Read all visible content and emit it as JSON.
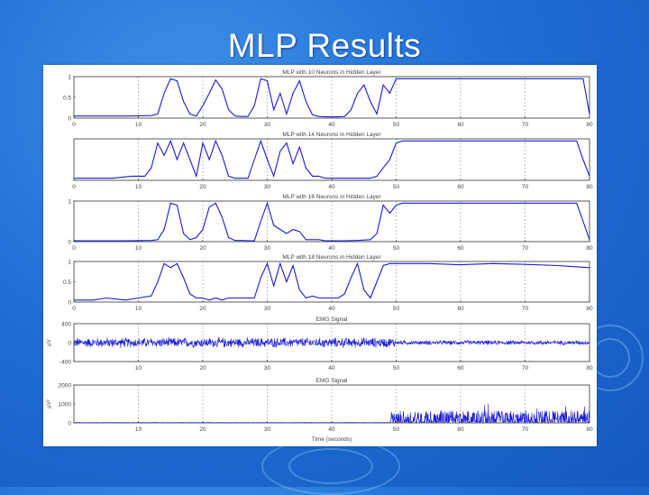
{
  "slide": {
    "title": "MLP Results"
  },
  "colors": {
    "line": "#1a1ad6",
    "axis": "#333333",
    "grid": "#555555"
  },
  "chart_data": [
    {
      "type": "line",
      "title": "MLP with 10 Neurons in Hidden Layer",
      "xlim": [
        0,
        80
      ],
      "ylim": [
        0,
        1
      ],
      "xticks": [
        "0",
        "10",
        "20",
        "30",
        "40",
        "50",
        "60",
        "70",
        "80"
      ],
      "yticks": [
        "0",
        "0.5",
        "1"
      ],
      "x": [
        0,
        4,
        8,
        12,
        13,
        14,
        15,
        16,
        17,
        18,
        19,
        20,
        21,
        22,
        23,
        24,
        25,
        26,
        27,
        28,
        29,
        30,
        31,
        32,
        33,
        34,
        35,
        36,
        37,
        38,
        39,
        40,
        41,
        42,
        43,
        44,
        45,
        46,
        47,
        48,
        49,
        50,
        51,
        52,
        53,
        54,
        55,
        60,
        65,
        70,
        74,
        75,
        76,
        77,
        78,
        79,
        80
      ],
      "y": [
        0.05,
        0.05,
        0.05,
        0.06,
        0.1,
        0.6,
        0.95,
        0.9,
        0.4,
        0.1,
        0.05,
        0.3,
        0.6,
        0.92,
        0.7,
        0.2,
        0.05,
        0.04,
        0.04,
        0.3,
        0.95,
        0.9,
        0.2,
        0.6,
        0.1,
        0.6,
        0.9,
        0.4,
        0.08,
        0.04,
        0.03,
        0.03,
        0.03,
        0.04,
        0.2,
        0.6,
        0.8,
        0.4,
        0.1,
        0.8,
        0.6,
        0.95,
        0.95,
        0.95,
        0.95,
        0.95,
        0.95,
        0.95,
        0.95,
        0.95,
        0.95,
        0.95,
        0.95,
        0.95,
        0.95,
        0.95,
        0.1
      ]
    },
    {
      "type": "line",
      "title": "MLP with 14 Neurons in Hidden Layer",
      "xlim": [
        0,
        80
      ],
      "ylim": [
        0,
        1
      ],
      "xticks": [
        "0",
        "10",
        "20",
        "30",
        "40",
        "50",
        "60",
        "70",
        "80"
      ],
      "yticks": [],
      "x": [
        0,
        3,
        6,
        9,
        11,
        12,
        13,
        14,
        15,
        16,
        17,
        18,
        19,
        20,
        21,
        22,
        23,
        24,
        25,
        26,
        27,
        28,
        29,
        30,
        31,
        32,
        33,
        34,
        35,
        36,
        37,
        38,
        39,
        40,
        42,
        44,
        46,
        47,
        48,
        49,
        50,
        51,
        52,
        53,
        55,
        60,
        70,
        78,
        79,
        80
      ],
      "y": [
        0.05,
        0.05,
        0.05,
        0.1,
        0.1,
        0.3,
        0.9,
        0.6,
        0.95,
        0.5,
        0.9,
        0.5,
        0.1,
        0.9,
        0.5,
        0.95,
        0.6,
        0.1,
        0.05,
        0.05,
        0.05,
        0.5,
        0.95,
        0.5,
        0.1,
        0.7,
        0.9,
        0.4,
        0.8,
        0.3,
        0.1,
        0.1,
        0.05,
        0.05,
        0.05,
        0.05,
        0.05,
        0.1,
        0.3,
        0.5,
        0.9,
        0.95,
        0.95,
        0.95,
        0.95,
        0.95,
        0.95,
        0.95,
        0.5,
        0.1
      ]
    },
    {
      "type": "line",
      "title": "MLP with 16 Neurons in Hidden Layer",
      "xlim": [
        0,
        80
      ],
      "ylim": [
        0,
        1
      ],
      "xticks": [
        "0",
        "10",
        "20",
        "30",
        "40",
        "50",
        "60",
        "70",
        "80"
      ],
      "yticks": [
        "0",
        "1"
      ],
      "x": [
        0,
        4,
        8,
        12,
        13,
        14,
        15,
        16,
        17,
        18,
        19,
        20,
        21,
        22,
        23,
        24,
        25,
        26,
        27,
        28,
        29,
        30,
        31,
        32,
        33,
        34,
        35,
        36,
        37,
        38,
        39,
        40,
        42,
        44,
        46,
        47,
        48,
        49,
        50,
        51,
        52,
        55,
        60,
        70,
        78,
        79,
        80
      ],
      "y": [
        0.02,
        0.02,
        0.02,
        0.03,
        0.05,
        0.3,
        0.95,
        0.9,
        0.2,
        0.05,
        0.1,
        0.3,
        0.85,
        0.95,
        0.6,
        0.1,
        0.03,
        0.03,
        0.02,
        0.02,
        0.5,
        0.95,
        0.4,
        0.3,
        0.2,
        0.3,
        0.25,
        0.05,
        0.05,
        0.05,
        0.02,
        0.02,
        0.02,
        0.03,
        0.05,
        0.2,
        0.9,
        0.7,
        0.9,
        0.95,
        0.95,
        0.95,
        0.95,
        0.95,
        0.95,
        0.5,
        0.05
      ]
    },
    {
      "type": "line",
      "title": "MLP with 18 Neurons in Hidden Layer",
      "xlim": [
        0,
        80
      ],
      "ylim": [
        0,
        1
      ],
      "xticks": [
        "0",
        "10",
        "20",
        "30",
        "40",
        "50",
        "60",
        "70",
        "80"
      ],
      "yticks": [
        "0",
        "0.5",
        "1"
      ],
      "x": [
        0,
        3,
        5,
        8,
        10,
        12,
        13,
        14,
        15,
        16,
        17,
        18,
        19,
        20,
        21,
        22,
        23,
        24,
        26,
        28,
        29,
        30,
        31,
        32,
        33,
        34,
        35,
        36,
        37,
        38,
        39,
        40,
        41,
        42,
        43,
        44,
        45,
        46,
        47,
        48,
        49,
        50,
        51,
        55,
        60,
        65,
        70,
        75,
        80
      ],
      "y": [
        0.05,
        0.05,
        0.1,
        0.05,
        0.1,
        0.15,
        0.5,
        0.95,
        0.85,
        0.95,
        0.6,
        0.2,
        0.1,
        0.1,
        0.05,
        0.1,
        0.05,
        0.1,
        0.1,
        0.1,
        0.6,
        0.95,
        0.4,
        0.95,
        0.5,
        0.9,
        0.3,
        0.1,
        0.15,
        0.1,
        0.1,
        0.1,
        0.1,
        0.2,
        0.6,
        0.95,
        0.3,
        0.1,
        0.5,
        0.9,
        0.95,
        0.95,
        0.95,
        0.95,
        0.92,
        0.95,
        0.93,
        0.9,
        0.85
      ]
    },
    {
      "type": "line",
      "title": "EMG Signal",
      "ylabel": "µV",
      "xlim": [
        0,
        80
      ],
      "ylim": [
        -400,
        400
      ],
      "xticks": [
        "",
        "10",
        "20",
        "30",
        "40",
        "50",
        "60",
        "70",
        "80"
      ],
      "yticks": [
        "-400",
        "0",
        "400"
      ],
      "signal_description": "dense noise-like EMG, amplitude ~±100 µV for 0–50 s, smaller ~±50 µV after 50 s"
    },
    {
      "type": "line",
      "title": "EMG Signal",
      "xlabel": "Time (seconds)",
      "ylabel": "µV²",
      "xlim": [
        0,
        80
      ],
      "ylim": [
        0,
        2000
      ],
      "xticks": [
        "",
        "10",
        "20",
        "30",
        "40",
        "50",
        "60",
        "70",
        "80"
      ],
      "yticks": [
        "0",
        "1000",
        "2000"
      ],
      "signal_description": "squared EMG: near zero until ~50 s, then dense spikes mostly 200–700, occasional peaks near 1000"
    }
  ]
}
